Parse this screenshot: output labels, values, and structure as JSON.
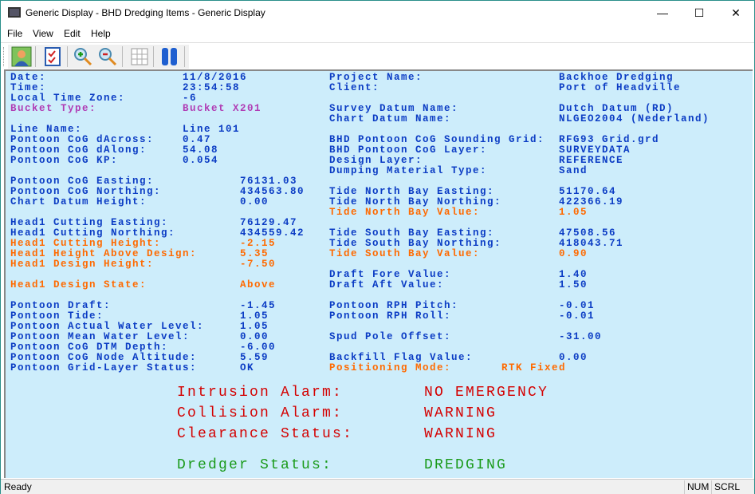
{
  "window": {
    "title": "Generic Display - BHD Dredging Items  - Generic Display",
    "minimize": "—",
    "maximize": "☐",
    "close": "✕"
  },
  "menu": [
    "File",
    "View",
    "Edit",
    "Help"
  ],
  "toolbar": [
    "user-icon",
    "checklist-icon",
    "zoom-in-icon",
    "zoom-out-icon",
    "grid-icon",
    "pause-icon"
  ],
  "colors": {
    "normal": "#0b3cc4",
    "magenta": "#b03cb4",
    "orange": "#ff6a00",
    "alarm": "#d40000",
    "ok": "#1a9a1a",
    "panel": "#cdedfb"
  },
  "left_groups": [
    [
      {
        "label": "Date:",
        "value": "11/8/2016",
        "color": "normal"
      },
      {
        "label": "Time:",
        "value": "23:54:58",
        "color": "normal"
      },
      {
        "label": "Local Time Zone:",
        "value": "-6",
        "color": "normal"
      },
      {
        "label": "Bucket Type:",
        "value": "Bucket X201",
        "color": "magenta"
      }
    ],
    [
      {
        "label": "Line Name:",
        "value": "Line 101",
        "color": "normal"
      },
      {
        "label": "Pontoon CoG dAcross:",
        "value": "0.47",
        "color": "normal"
      },
      {
        "label": "Pontoon CoG dAlong:",
        "value": "54.08",
        "color": "normal"
      },
      {
        "label": "Pontoon CoG KP:",
        "value": "0.054",
        "color": "normal"
      }
    ],
    [
      {
        "label": "Pontoon CoG Easting:",
        "value": "76131.03",
        "color": "normal"
      },
      {
        "label": "Pontoon CoG Northing:",
        "value": "434563.80",
        "color": "normal"
      },
      {
        "label": "Chart Datum Height:",
        "value": "0.00",
        "color": "normal"
      }
    ],
    [
      {
        "label": "Head1 Cutting Easting:",
        "value": "76129.47",
        "color": "normal"
      },
      {
        "label": "Head1 Cutting Northing:",
        "value": "434559.42",
        "color": "normal"
      },
      {
        "label": "Head1 Cutting Height:",
        "value": "-2.15",
        "color": "orange"
      },
      {
        "label": "Head1 Height Above Design:",
        "value": "5.35",
        "color": "orange"
      },
      {
        "label": "Head1 Design Height:",
        "value": "-7.50",
        "color": "orange"
      }
    ],
    [
      {
        "label": "Head1 Design State:",
        "value": "Above",
        "color": "orange"
      }
    ],
    [
      {
        "label": "Pontoon Draft:",
        "value": "-1.45",
        "color": "normal"
      },
      {
        "label": "Pontoon Tide:",
        "value": "1.05",
        "color": "normal"
      },
      {
        "label": "Pontoon Actual Water Level:",
        "value": "1.05",
        "color": "normal"
      },
      {
        "label": "Pontoon Mean Water Level:",
        "value": "0.00",
        "color": "normal"
      },
      {
        "label": "Pontoon CoG DTM Depth:",
        "value": "-6.00",
        "color": "normal"
      },
      {
        "label": "Pontoon CoG Node Altitude:",
        "value": "5.59",
        "color": "normal"
      },
      {
        "label": "Pontoon Grid-Layer Status:",
        "value": "OK",
        "color": "normal"
      }
    ]
  ],
  "right_groups": [
    [
      {
        "label": "Project Name:",
        "value": "Backhoe Dredging",
        "color": "normal"
      },
      {
        "label": "Client:",
        "value": "Port of Headville",
        "color": "normal"
      }
    ],
    [
      {
        "label": "Survey Datum Name:",
        "value": "Dutch Datum (RD)",
        "color": "normal"
      },
      {
        "label": "Chart Datum Name:",
        "value": "NLGEO2004 (Nederland)",
        "color": "normal"
      }
    ],
    [
      {
        "label": "BHD Pontoon CoG Sounding Grid:",
        "value": "RFG93 Grid.grd",
        "color": "normal"
      },
      {
        "label": "BHD Pontoon CoG Layer:",
        "value": "SURVEYDATA",
        "color": "normal"
      },
      {
        "label": "Design Layer:",
        "value": "REFERENCE",
        "color": "normal"
      },
      {
        "label": "Dumping Material Type:",
        "value": "Sand",
        "color": "normal"
      }
    ],
    [
      {
        "label": "Tide North Bay Easting:",
        "value": "51170.64",
        "color": "normal"
      },
      {
        "label": "Tide North Bay Northing:",
        "value": "422366.19",
        "color": "normal"
      },
      {
        "label": "Tide North Bay Value:",
        "value": "1.05",
        "color": "orange"
      }
    ],
    [
      {
        "label": "Tide South Bay Easting:",
        "value": "47508.56",
        "color": "normal"
      },
      {
        "label": "Tide South Bay Northing:",
        "value": "418043.71",
        "color": "normal"
      },
      {
        "label": "Tide South Bay Value:",
        "value": "0.90",
        "color": "orange"
      }
    ],
    [
      {
        "label": "Draft Fore Value:",
        "value": "1.40",
        "color": "normal"
      },
      {
        "label": "Draft Aft Value:",
        "value": "1.50",
        "color": "normal"
      }
    ],
    [
      {
        "label": "Pontoon RPH Pitch:",
        "value": "-0.01",
        "color": "normal"
      },
      {
        "label": "Pontoon RPH Roll:",
        "value": "-0.01",
        "color": "normal"
      }
    ],
    [
      {
        "label": "Spud Pole Offset:",
        "value": "-31.00",
        "color": "normal"
      }
    ],
    [
      {
        "label": "Backfill Flag Value:",
        "value": "0.00",
        "color": "normal"
      },
      {
        "label": "Positioning Mode:",
        "value": "RTK Fixed",
        "color": "orange"
      }
    ]
  ],
  "alarms": [
    {
      "label": "Intrusion Alarm:",
      "value": "NO EMERGENCY",
      "color": "alarm"
    },
    {
      "label": "Collision Alarm:",
      "value": "WARNING",
      "color": "alarm"
    },
    {
      "label": "Clearance Status:",
      "value": "WARNING",
      "color": "alarm"
    },
    {
      "label": "Dredger Status:",
      "value": "DREDGING",
      "color": "ok"
    }
  ],
  "status": {
    "text": "Ready",
    "num": "NUM",
    "scrl": "SCRL"
  }
}
